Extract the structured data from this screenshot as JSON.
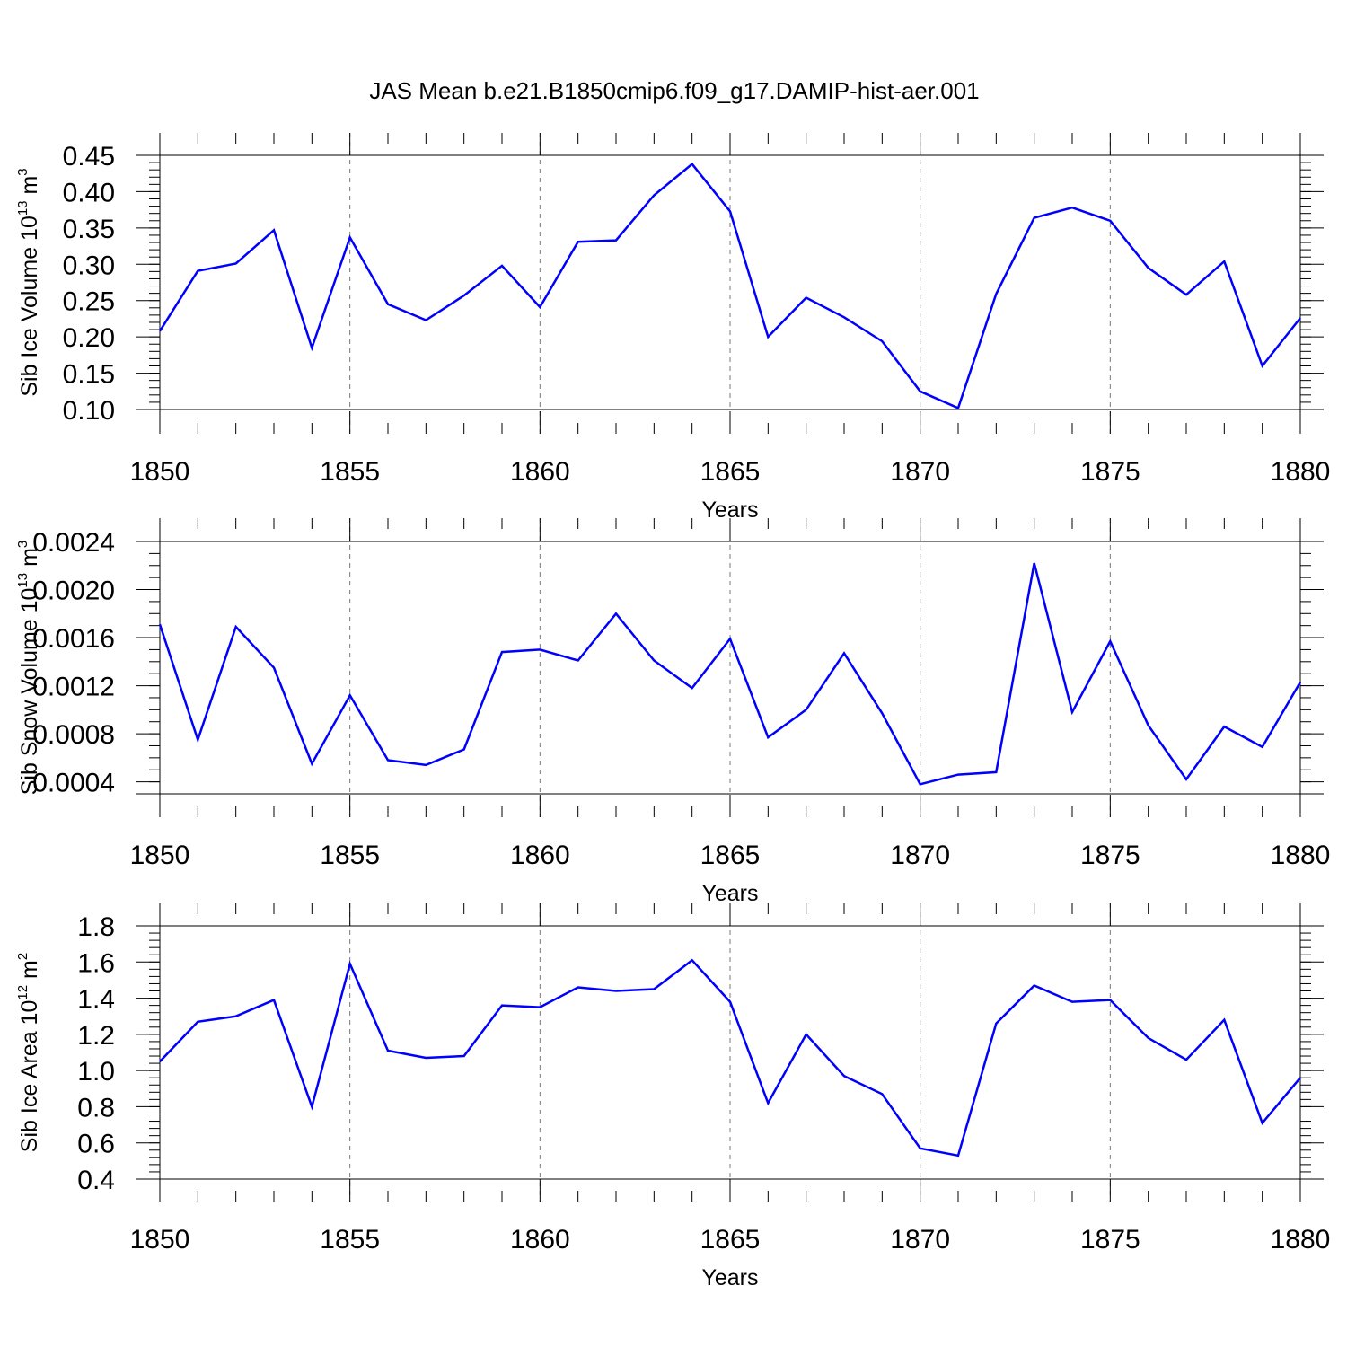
{
  "figure": {
    "title": "JAS Mean b.e21.B1850cmip6.f09_g17.DAMIP-hist-aer.001"
  },
  "chart_data": [
    {
      "type": "line",
      "title": "",
      "xlabel": "Years",
      "ylabel": {
        "text": "Sib Ice Volume 10",
        "sup": "13",
        "unit": " m",
        "unit_sup": "3"
      },
      "xlim": [
        1850,
        1880
      ],
      "ylim": [
        0.1,
        0.45
      ],
      "x_ticks": [
        1850,
        1855,
        1860,
        1865,
        1870,
        1875,
        1880
      ],
      "y_ticks": [
        "0.10",
        "0.15",
        "0.20",
        "0.25",
        "0.30",
        "0.35",
        "0.40",
        "0.45"
      ],
      "y_tick_values": [
        0.1,
        0.15,
        0.2,
        0.25,
        0.3,
        0.35,
        0.4,
        0.45
      ],
      "y_minor_step": 0.01,
      "grid": "dashed vertical at major x ticks",
      "color": "#0000ff",
      "x": [
        1850,
        1851,
        1852,
        1853,
        1854,
        1855,
        1856,
        1857,
        1858,
        1859,
        1860,
        1861,
        1862,
        1863,
        1864,
        1865,
        1866,
        1867,
        1868,
        1869,
        1870,
        1871,
        1872,
        1873,
        1874,
        1875,
        1876,
        1877,
        1878,
        1879,
        1880
      ],
      "values": [
        0.208,
        0.291,
        0.301,
        0.347,
        0.185,
        0.337,
        0.245,
        0.223,
        0.257,
        0.298,
        0.241,
        0.331,
        0.333,
        0.395,
        0.438,
        0.373,
        0.2,
        0.254,
        0.227,
        0.194,
        0.125,
        0.102,
        0.259,
        0.364,
        0.378,
        0.36,
        0.295,
        0.258,
        0.304,
        0.16,
        0.226
      ]
    },
    {
      "type": "line",
      "title": "",
      "xlabel": "Years",
      "ylabel": {
        "text": "Sib Snow Volume 10",
        "sup": "13",
        "unit": " m",
        "unit_sup": "3"
      },
      "xlim": [
        1850,
        1880
      ],
      "ylim": [
        0.0003,
        0.0024
      ],
      "x_ticks": [
        1850,
        1855,
        1860,
        1865,
        1870,
        1875,
        1880
      ],
      "y_ticks": [
        "0.0004",
        "0.0008",
        "0.0012",
        "0.0016",
        "0.0020",
        "0.0024"
      ],
      "y_tick_values": [
        0.0004,
        0.0008,
        0.0012,
        0.0016,
        0.002,
        0.0024
      ],
      "y_minor_step": 0.0001,
      "grid": "dashed vertical at major x ticks",
      "color": "#0000ff",
      "x": [
        1850,
        1851,
        1852,
        1853,
        1854,
        1855,
        1856,
        1857,
        1858,
        1859,
        1860,
        1861,
        1862,
        1863,
        1864,
        1865,
        1866,
        1867,
        1868,
        1869,
        1870,
        1871,
        1872,
        1873,
        1874,
        1875,
        1876,
        1877,
        1878,
        1879,
        1880
      ],
      "values": [
        0.00171,
        0.00075,
        0.00169,
        0.00135,
        0.00055,
        0.00112,
        0.00058,
        0.00054,
        0.00067,
        0.00148,
        0.0015,
        0.00141,
        0.0018,
        0.00141,
        0.00118,
        0.00159,
        0.00077,
        0.001,
        0.00147,
        0.00097,
        0.00038,
        0.00046,
        0.00048,
        0.00222,
        0.00098,
        0.00157,
        0.00087,
        0.00042,
        0.00086,
        0.00069,
        0.00123
      ]
    },
    {
      "type": "line",
      "title": "",
      "xlabel": "Years",
      "ylabel": {
        "text": "Sib Ice Area 10",
        "sup": "12",
        "unit": " m",
        "unit_sup": "2"
      },
      "xlim": [
        1850,
        1880
      ],
      "ylim": [
        0.4,
        1.8
      ],
      "x_ticks": [
        1850,
        1855,
        1860,
        1865,
        1870,
        1875,
        1880
      ],
      "y_ticks": [
        "0.4",
        "0.6",
        "0.8",
        "1.0",
        "1.2",
        "1.4",
        "1.6",
        "1.8"
      ],
      "y_tick_values": [
        0.4,
        0.6,
        0.8,
        1.0,
        1.2,
        1.4,
        1.6,
        1.8
      ],
      "y_minor_step": 0.04,
      "grid": "dashed vertical at major x ticks",
      "color": "#0000ff",
      "x": [
        1850,
        1851,
        1852,
        1853,
        1854,
        1855,
        1856,
        1857,
        1858,
        1859,
        1860,
        1861,
        1862,
        1863,
        1864,
        1865,
        1866,
        1867,
        1868,
        1869,
        1870,
        1871,
        1872,
        1873,
        1874,
        1875,
        1876,
        1877,
        1878,
        1879,
        1880
      ],
      "values": [
        1.05,
        1.27,
        1.3,
        1.39,
        0.8,
        1.59,
        1.11,
        1.07,
        1.08,
        1.36,
        1.35,
        1.46,
        1.44,
        1.45,
        1.61,
        1.38,
        0.82,
        1.2,
        0.97,
        0.87,
        0.57,
        0.53,
        1.26,
        1.47,
        1.38,
        1.39,
        1.18,
        1.06,
        1.28,
        0.71,
        0.96
      ]
    }
  ]
}
